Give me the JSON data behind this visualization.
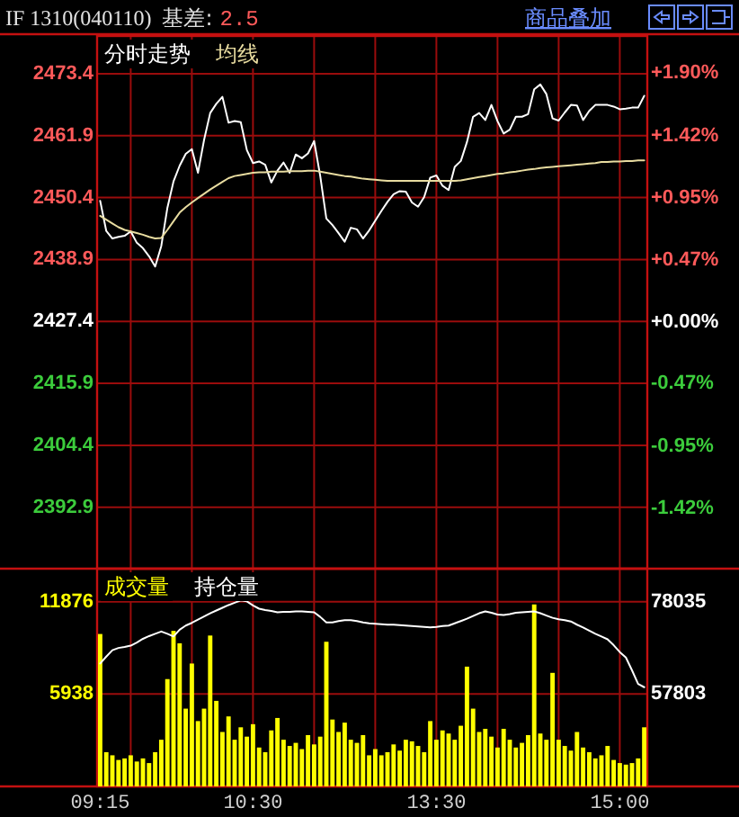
{
  "chart_data": [
    {
      "type": "line",
      "title": "IF 1310(040110)",
      "annotations": [
        "基差:",
        "2.5",
        "商品叠加"
      ],
      "categories": [
        null,
        null,
        null,
        null,
        null,
        null,
        null,
        null,
        null,
        null,
        null,
        null,
        null,
        null,
        null,
        null,
        null,
        null,
        null,
        null,
        null,
        null,
        null,
        null,
        null,
        null,
        null,
        null,
        null,
        null,
        null,
        null,
        null,
        null,
        null,
        null,
        null,
        null,
        null,
        null,
        null,
        null,
        null,
        null,
        null,
        null,
        null,
        null,
        null,
        null,
        null,
        null,
        null,
        null,
        null,
        null,
        null,
        null,
        null,
        null,
        null,
        null,
        null,
        null,
        null,
        null,
        null,
        null,
        null,
        null,
        null,
        null,
        null,
        null,
        null,
        null,
        null,
        null,
        null,
        null,
        null,
        null,
        null,
        null,
        null,
        null,
        null,
        null,
        null,
        null
      ],
      "ylim": [
        2381.5,
        2480.4
      ],
      "yticks": [
        2392.9,
        2404.4,
        2415.9,
        2427.4,
        2438.9,
        2450.4,
        2461.9,
        2473.4
      ],
      "y2lim": [
        -1.882,
        2.183
      ],
      "y2ticks": [
        {
          "value": -1.42,
          "label": "-1.42%"
        },
        {
          "value": -0.95,
          "label": "-0.95%"
        },
        {
          "value": -0.47,
          "label": "-0.47%"
        },
        {
          "value": 0,
          "label": "+0.00%"
        },
        {
          "value": 0.47,
          "label": "+0.47%"
        },
        {
          "value": 0.95,
          "label": "+0.95%"
        },
        {
          "value": 1.42,
          "label": "+1.42%"
        },
        {
          "value": 1.9,
          "label": "+1.90%"
        }
      ],
      "grid": true,
      "legend": "top left",
      "tick_labels": "y",
      "series": [
        {
          "name": "分时走势",
          "color": "#ffffff",
          "values": [
            2449.8,
            2444.2,
            2442.8,
            2443.1,
            2443.3,
            2444.1,
            2442.0,
            2441.0,
            2439.5,
            2437.6,
            2441.4,
            2448.5,
            2453.4,
            2456.3,
            2458.5,
            2459.4,
            2455.0,
            2461.1,
            2466.1,
            2467.8,
            2469.1,
            2464.3,
            2464.6,
            2464.4,
            2459.2,
            2456.8,
            2457.1,
            2456.5,
            2453.2,
            2455.4,
            2456.9,
            2455.0,
            2458.4,
            2457.7,
            2458.6,
            2460.9,
            2454.4,
            2446.5,
            2445.3,
            2443.8,
            2442.2,
            2444.8,
            2444.5,
            2442.8,
            2444.3,
            2446.1,
            2447.9,
            2449.6,
            2451.0,
            2451.6,
            2451.5,
            2449.5,
            2448.7,
            2450.5,
            2454.1,
            2454.5,
            2452.6,
            2451.8,
            2456.1,
            2457.2,
            2460.7,
            2465.4,
            2466.1,
            2464.8,
            2467.6,
            2464.6,
            2462.3,
            2463.0,
            2465.4,
            2465.4,
            2465.9,
            2470.5,
            2471.4,
            2469.6,
            2465.1,
            2464.7,
            2466.2,
            2467.6,
            2467.5,
            2464.8,
            2466.5,
            2467.6,
            2467.6,
            2467.6,
            2467.3,
            2466.8,
            2466.9,
            2467.1,
            2467.1,
            2469.3
          ]
        },
        {
          "name": "均线",
          "color": "#e8dca0",
          "values": [
            2447.0,
            2446.3,
            2445.6,
            2444.9,
            2444.4,
            2444.1,
            2443.8,
            2443.5,
            2443.1,
            2442.8,
            2442.9,
            2444.4,
            2446.0,
            2447.6,
            2448.6,
            2449.5,
            2450.3,
            2451.1,
            2451.9,
            2452.6,
            2453.3,
            2454.0,
            2454.4,
            2454.6,
            2454.8,
            2455.0,
            2455.1,
            2455.1,
            2455.2,
            2455.2,
            2455.2,
            2455.3,
            2455.3,
            2455.3,
            2455.4,
            2455.4,
            2455.2,
            2455.0,
            2454.8,
            2454.6,
            2454.4,
            2454.3,
            2454.1,
            2453.9,
            2453.8,
            2453.7,
            2453.6,
            2453.5,
            2453.5,
            2453.5,
            2453.5,
            2453.5,
            2453.5,
            2453.5,
            2453.5,
            2453.5,
            2453.5,
            2453.5,
            2453.5,
            2453.6,
            2453.8,
            2454.0,
            2454.2,
            2454.4,
            2454.6,
            2454.8,
            2454.9,
            2455.1,
            2455.2,
            2455.4,
            2455.6,
            2455.7,
            2455.9,
            2456.0,
            2456.1,
            2456.2,
            2456.3,
            2456.4,
            2456.5,
            2456.6,
            2456.7,
            2456.8,
            2457.0,
            2457.0,
            2457.1,
            2457.1,
            2457.2,
            2457.2,
            2457.3,
            2457.3
          ]
        }
      ]
    },
    {
      "type": "bar",
      "categories": [
        "09:15",
        null,
        null,
        null,
        null,
        null,
        null,
        null,
        null,
        null,
        null,
        null,
        null,
        null,
        null,
        null,
        null,
        null,
        null,
        null,
        null,
        null,
        null,
        null,
        null,
        "10:30",
        null,
        null,
        null,
        null,
        null,
        null,
        null,
        null,
        null,
        null,
        null,
        null,
        null,
        null,
        null,
        null,
        null,
        null,
        null,
        null,
        null,
        null,
        null,
        null,
        null,
        null,
        null,
        null,
        null,
        "13:30",
        null,
        null,
        null,
        null,
        null,
        null,
        null,
        null,
        null,
        null,
        null,
        null,
        null,
        null,
        null,
        null,
        null,
        null,
        null,
        null,
        null,
        null,
        null,
        null,
        null,
        null,
        null,
        null,
        null,
        "15:00",
        null,
        null,
        null,
        null
      ],
      "ylim": [
        0,
        14000
      ],
      "yticks": [
        5938,
        11876
      ],
      "y2lim": [
        37570,
        85270
      ],
      "y2ticks": [
        57803,
        78035
      ],
      "grid": true,
      "legend": "top left",
      "series": [
        {
          "name": "成交量",
          "color": "#ffff00",
          "values": [
            9800,
            2200,
            2000,
            1700,
            1800,
            2000,
            1600,
            1800,
            1500,
            2200,
            3000,
            6900,
            10000,
            9200,
            5000,
            7900,
            4200,
            5000,
            9700,
            5500,
            3500,
            4500,
            3000,
            3800,
            3200,
            4000,
            2500,
            2200,
            3600,
            4400,
            3000,
            2600,
            2800,
            2400,
            3300,
            2700,
            3200,
            9300,
            4300,
            3500,
            4100,
            3000,
            2800,
            3300,
            2000,
            2400,
            2000,
            2200,
            2700,
            2300,
            3000,
            2900,
            2600,
            2200,
            4200,
            3000,
            3600,
            3400,
            3000,
            3900,
            7700,
            5000,
            3500,
            3700,
            3200,
            2500,
            3700,
            3000,
            2500,
            2800,
            3300,
            11700,
            3400,
            3000,
            7300,
            3000,
            2600,
            2300,
            3500,
            2500,
            2200,
            1800,
            2000,
            2600,
            1700,
            1500,
            1400,
            1500,
            1800,
            3800
          ]
        },
        {
          "name": "持仓量",
          "type": "line",
          "axis": "y2",
          "color": "#ffffff",
          "values": [
            64500,
            66000,
            67400,
            67900,
            68100,
            68400,
            69100,
            69900,
            70500,
            71000,
            71500,
            71000,
            70400,
            71900,
            72800,
            73400,
            74100,
            74800,
            75500,
            76100,
            76700,
            77300,
            77800,
            78300,
            78100,
            77200,
            76500,
            76200,
            76000,
            75700,
            75800,
            75800,
            75900,
            75900,
            75800,
            75700,
            74700,
            73500,
            73500,
            73800,
            74000,
            74000,
            73800,
            73500,
            73300,
            73200,
            73100,
            73000,
            73000,
            72900,
            72800,
            72700,
            72600,
            72500,
            72400,
            72500,
            72700,
            72800,
            73300,
            73800,
            74300,
            74900,
            75500,
            75900,
            75600,
            75200,
            75100,
            75300,
            75600,
            75700,
            75800,
            75900,
            75500,
            75000,
            74500,
            74200,
            74000,
            73700,
            73000,
            72400,
            71700,
            71000,
            70400,
            69800,
            68500,
            67000,
            65800,
            63000,
            60000,
            59300
          ]
        }
      ]
    }
  ]
}
